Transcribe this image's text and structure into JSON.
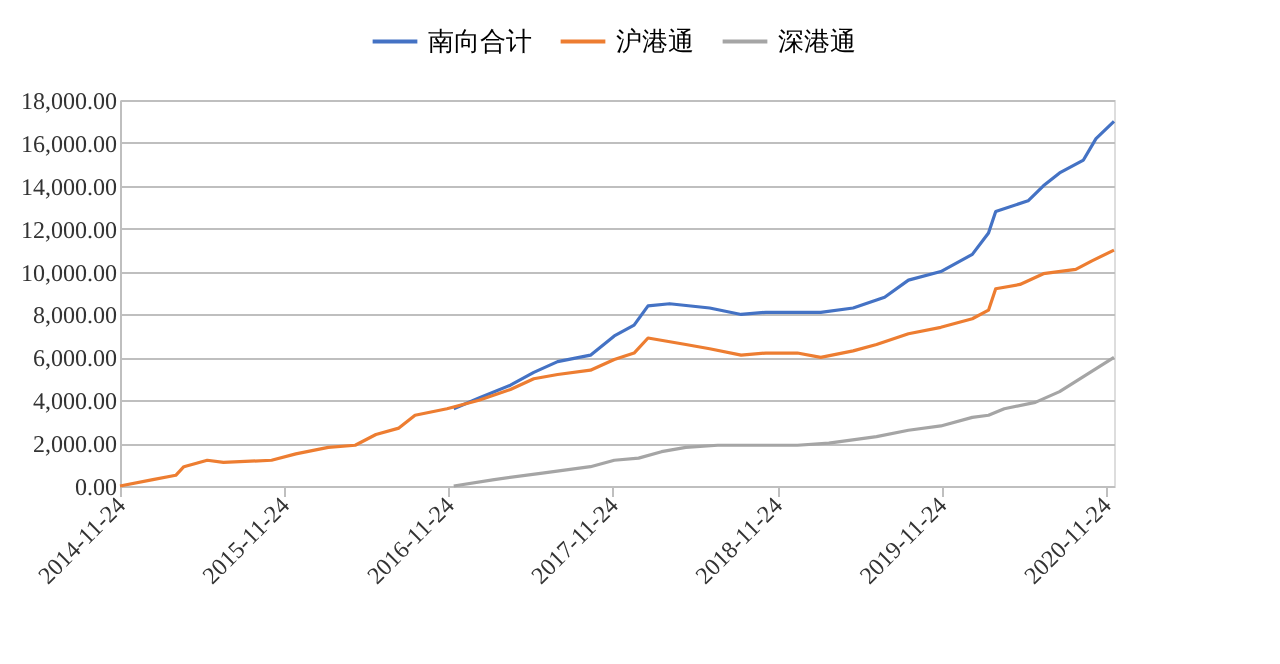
{
  "chart_data": {
    "type": "line",
    "xlim": [
      "2014-11-24",
      "2020-12-12"
    ],
    "xticks": [
      "2014-11-24",
      "2015-11-24",
      "2016-11-24",
      "2017-11-24",
      "2018-11-24",
      "2019-11-24",
      "2020-11-24"
    ],
    "ylim": [
      0,
      18000
    ],
    "yticks": [
      {
        "value": 0,
        "label": "0.00"
      },
      {
        "value": 2000,
        "label": "2,000.00"
      },
      {
        "value": 4000,
        "label": "4,000.00"
      },
      {
        "value": 6000,
        "label": "6,000.00"
      },
      {
        "value": 8000,
        "label": "8,000.00"
      },
      {
        "value": 10000,
        "label": "10,000.00"
      },
      {
        "value": 12000,
        "label": "12,000.00"
      },
      {
        "value": 14000,
        "label": "14,000.00"
      },
      {
        "value": 16000,
        "label": "16,000.00"
      },
      {
        "value": 18000,
        "label": "18,000.00"
      }
    ],
    "grid": "y",
    "legend": "top",
    "line_style": "solid",
    "marker": "none",
    "series": [
      {
        "name": "南向合计",
        "color": "#4472c4",
        "x": [
          "2016-12-05",
          "2017-01-30",
          "2017-04-10",
          "2017-06-01",
          "2017-07-24",
          "2017-10-05",
          "2017-11-27",
          "2018-01-10",
          "2018-02-10",
          "2018-03-30",
          "2018-06-27",
          "2018-09-05",
          "2018-10-30",
          "2019-01-08",
          "2019-03-01",
          "2019-05-12",
          "2019-07-21",
          "2019-09-12",
          "2019-11-23",
          "2020-02-01",
          "2020-03-08",
          "2020-03-24",
          "2020-06-04",
          "2020-07-08",
          "2020-08-13",
          "2020-10-05",
          "2020-11-02",
          "2020-12-12"
        ],
        "values": [
          3600,
          4100,
          4700,
          5300,
          5800,
          6100,
          7000,
          7500,
          8400,
          8500,
          8300,
          8000,
          8100,
          8100,
          8100,
          8300,
          8800,
          9600,
          10000,
          10800,
          11800,
          12800,
          13300,
          14000,
          14600,
          15200,
          16200,
          17000
        ]
      },
      {
        "name": "沪港通",
        "color": "#ed7d31",
        "x": [
          "2014-11-24",
          "2015-02-05",
          "2015-03-28",
          "2015-04-15",
          "2015-06-06",
          "2015-07-12",
          "2015-10-27",
          "2015-12-20",
          "2016-03-01",
          "2016-04-30",
          "2016-06-15",
          "2016-08-05",
          "2016-09-10",
          "2016-11-20",
          "2017-01-30",
          "2017-04-10",
          "2017-06-01",
          "2017-07-24",
          "2017-10-05",
          "2017-11-27",
          "2018-01-10",
          "2018-02-10",
          "2018-05-05",
          "2018-06-27",
          "2018-09-05",
          "2018-10-30",
          "2019-01-08",
          "2019-03-01",
          "2019-05-12",
          "2019-07-03",
          "2019-09-12",
          "2019-11-23",
          "2020-02-01",
          "2020-03-08",
          "2020-03-24",
          "2020-05-17",
          "2020-07-08",
          "2020-09-18",
          "2020-10-24",
          "2020-12-12"
        ],
        "values": [
          0,
          300,
          500,
          900,
          1200,
          1100,
          1200,
          1500,
          1800,
          1900,
          2400,
          2700,
          3300,
          3600,
          4000,
          4500,
          5000,
          5200,
          5400,
          5900,
          6200,
          6900,
          6600,
          6400,
          6100,
          6200,
          6200,
          6000,
          6300,
          6600,
          7100,
          7400,
          7800,
          8200,
          9200,
          9400,
          9900,
          10100,
          10500,
          11000
        ]
      },
      {
        "name": "深港通",
        "color": "#a5a5a5",
        "x": [
          "2016-12-05",
          "2017-03-05",
          "2017-06-20",
          "2017-10-05",
          "2017-11-27",
          "2018-01-20",
          "2018-03-12",
          "2018-05-05",
          "2018-07-15",
          "2018-09-05",
          "2019-01-08",
          "2019-03-19",
          "2019-07-03",
          "2019-09-12",
          "2019-11-23",
          "2020-02-01",
          "2020-03-08",
          "2020-04-12",
          "2020-06-20",
          "2020-08-13",
          "2020-10-05",
          "2020-12-12"
        ],
        "values": [
          0,
          300,
          600,
          900,
          1200,
          1300,
          1600,
          1800,
          1900,
          1900,
          1900,
          2000,
          2300,
          2600,
          2800,
          3200,
          3300,
          3600,
          3900,
          4400,
          5100,
          6000
        ]
      }
    ]
  }
}
